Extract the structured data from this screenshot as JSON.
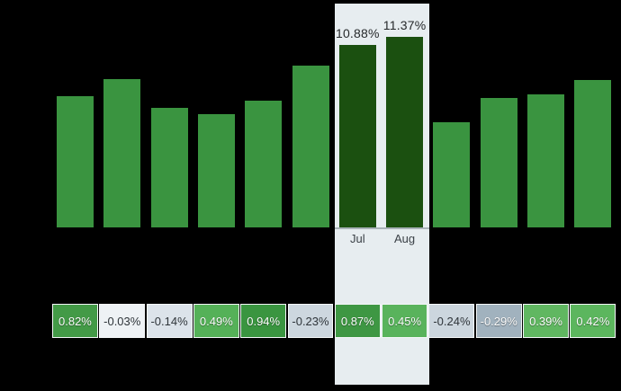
{
  "chart_data": {
    "type": "bar",
    "title": "",
    "grid": false,
    "legend": false,
    "ylim": [
      0,
      13
    ],
    "categories": [
      "",
      "",
      "",
      "",
      "",
      "",
      "Jul",
      "Aug",
      "",
      "",
      "",
      ""
    ],
    "bar_series": {
      "name": "monthly-level-percent",
      "values": [
        7.83,
        8.85,
        7.13,
        6.76,
        7.56,
        9.65,
        10.88,
        11.37,
        6.27,
        7.72,
        7.94,
        8.79
      ],
      "value_labels": [
        null,
        null,
        null,
        null,
        null,
        null,
        "10.88%",
        "11.37%",
        null,
        null,
        null,
        null
      ],
      "highlighted_indices": [
        6,
        7
      ]
    },
    "heat_row": {
      "name": "monthly-change-percent",
      "values": [
        0.82,
        -0.03,
        -0.14,
        0.49,
        0.94,
        -0.23,
        0.87,
        0.45,
        -0.24,
        -0.29,
        0.39,
        0.42
      ],
      "labels": [
        "0.82%",
        "-0.03%",
        "-0.14%",
        "0.49%",
        "0.94%",
        "-0.23%",
        "0.87%",
        "0.45%",
        "-0.24%",
        "-0.29%",
        "0.39%",
        "0.42%"
      ],
      "cell_colors": [
        "#439a47",
        "#eef2f5",
        "#dce3ea",
        "#55b158",
        "#3a9540",
        "#cdd7df",
        "#3e9743",
        "#59b35c",
        "#ccd6de",
        "#a1b2be",
        "#60b761",
        "#5cb65e"
      ],
      "text_colors": [
        "#ffffff",
        "#2f353a",
        "#2f353a",
        "#ffffff",
        "#ffffff",
        "#2f353a",
        "#ffffff",
        "#ffffff",
        "#2f353a",
        "#ffffff",
        "#ffffff",
        "#ffffff"
      ]
    }
  },
  "colors": {
    "background": "#000000",
    "bar_default": "#3a9440",
    "bar_highlight": "#1b5010",
    "highlight_band": "#e7edf0",
    "baseline_line": "#a9b2b8",
    "value_label_text": "#26292b",
    "month_label_text": "#3b4147",
    "cell_border": "#f4f7f8"
  }
}
